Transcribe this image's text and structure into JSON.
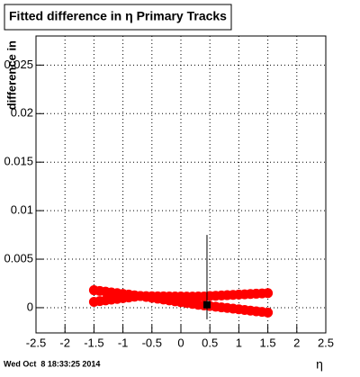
{
  "chart_data": {
    "type": "scatter",
    "title": "Fitted difference in η  Primary Tracks",
    "x_label": "η",
    "y_label": "difference in",
    "xlim": [
      -2.5,
      2.5
    ],
    "ylim": [
      -0.0026,
      0.028
    ],
    "xticks": [
      -2.5,
      -2,
      -1.5,
      -1,
      -0.5,
      0,
      0.5,
      1,
      1.5,
      2,
      2.5
    ],
    "yticks": [
      0,
      0.005,
      0.01,
      0.015,
      0.02,
      0.025
    ],
    "grid": true,
    "series": [
      {
        "color": "#ff0000",
        "x": [
          -1.5,
          -1.4,
          -1.3,
          -1.2,
          -1.1,
          -1.0,
          -0.9,
          -0.8,
          -0.7,
          -0.6,
          -0.5,
          -0.4,
          -0.3,
          -0.2,
          -0.1,
          0,
          0.1,
          0.2,
          0.3,
          0.4,
          0.5,
          0.6,
          0.7,
          0.8,
          0.9,
          1.0,
          1.1,
          1.2,
          1.3,
          1.4,
          1.5
        ],
        "values": [
          0.0018,
          0.001725,
          0.00165,
          0.001575,
          0.0015,
          0.001425,
          0.00135,
          0.001275,
          0.0012,
          0.00111,
          0.00102,
          0.00093,
          0.00084,
          0.00075,
          0.00066,
          0.00057,
          0.00048,
          0.00039,
          0.0003,
          0.00023,
          0.00017,
          0.0001,
          3e-05,
          -3e-05,
          -0.0001,
          -0.00017,
          -0.00023,
          -0.0003,
          -0.00037,
          -0.00043,
          -0.0005
        ]
      },
      {
        "color": "#ff0000",
        "x": [
          -1.5,
          -1.4,
          -1.3,
          -1.2,
          -1.1,
          -1.0,
          -0.9,
          -0.8,
          -0.7,
          -0.6,
          -0.5,
          -0.4,
          -0.3,
          -0.2,
          -0.1,
          0,
          0.1,
          0.2,
          0.3,
          0.4,
          0.5,
          0.6,
          0.7,
          0.8,
          0.9,
          1.0,
          1.1,
          1.2,
          1.3,
          1.4,
          1.5
        ],
        "values": [
          0.0006,
          0.00068,
          0.00075,
          0.00083,
          0.0009,
          0.00098,
          0.00105,
          0.00113,
          0.0012,
          0.00119,
          0.00118,
          0.00117,
          0.00117,
          0.00116,
          0.00115,
          0.00115,
          0.00114,
          0.00114,
          0.00115,
          0.00116,
          0.0012,
          0.00123,
          0.00126,
          0.00129,
          0.00132,
          0.00135,
          0.00138,
          0.00141,
          0.00144,
          0.00147,
          0.0015
        ]
      },
      {
        "color": "#000000",
        "marker": "square",
        "x": [
          0.45
        ],
        "values": [
          0.0003
        ],
        "error_low": [
          0.0015
        ],
        "error_high": [
          0.0072
        ]
      }
    ]
  },
  "footer": "Wed Oct  8 18:33:25 2014"
}
